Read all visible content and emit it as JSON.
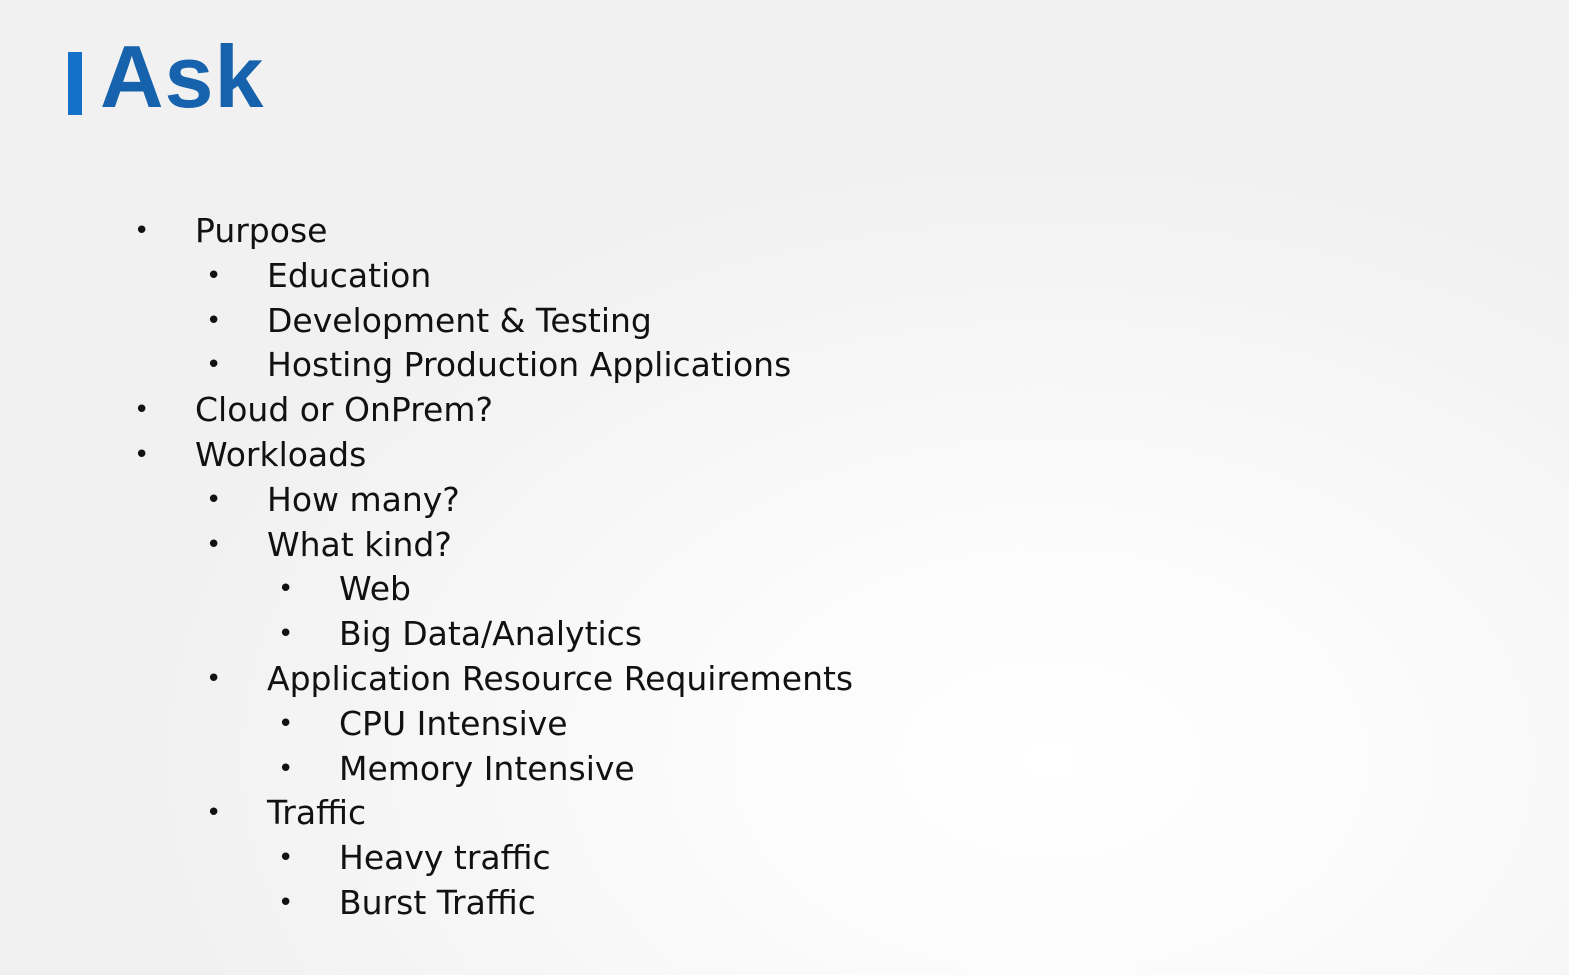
{
  "slide": {
    "title": "Ask",
    "accent_color": "#1762ad",
    "bullet": "•",
    "items": [
      {
        "level": 0,
        "text": "Purpose"
      },
      {
        "level": 1,
        "text": "Education"
      },
      {
        "level": 1,
        "text": "Development & Testing"
      },
      {
        "level": 1,
        "text": "Hosting Production Applications"
      },
      {
        "level": 0,
        "text": "Cloud or OnPrem?"
      },
      {
        "level": 0,
        "text": "Workloads"
      },
      {
        "level": 1,
        "text": "How many?"
      },
      {
        "level": 1,
        "text": "What kind?"
      },
      {
        "level": 2,
        "text": "Web"
      },
      {
        "level": 2,
        "text": "Big Data/Analytics"
      },
      {
        "level": 1,
        "text": "Application Resource Requirements"
      },
      {
        "level": 2,
        "text": "CPU Intensive"
      },
      {
        "level": 2,
        "text": "Memory Intensive"
      },
      {
        "level": 1,
        "text": "Traffic"
      },
      {
        "level": 2,
        "text": "Heavy traffic"
      },
      {
        "level": 2,
        "text": "Burst Traffic"
      }
    ]
  }
}
